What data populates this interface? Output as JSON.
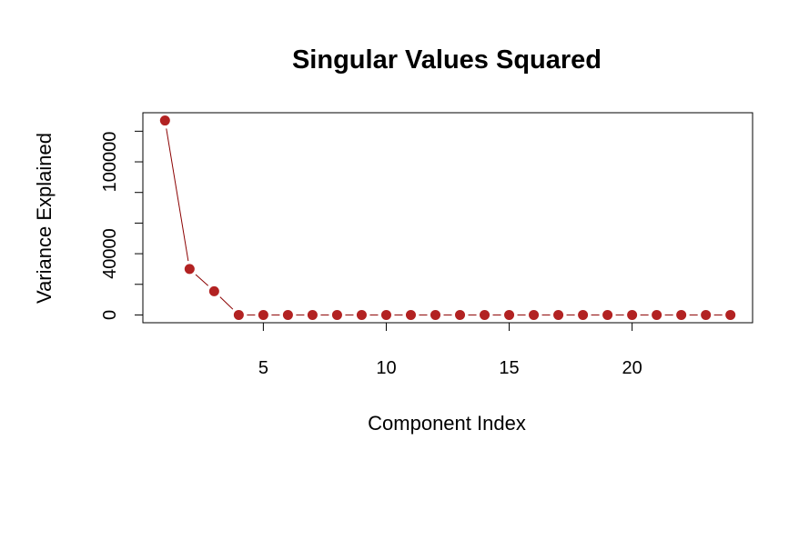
{
  "chart_data": {
    "type": "line",
    "title": "Singular Values Squared",
    "xlabel": "Component Index",
    "ylabel": "Variance Explained",
    "x": [
      1,
      2,
      3,
      4,
      5,
      6,
      7,
      8,
      9,
      10,
      11,
      12,
      13,
      14,
      15,
      16,
      17,
      18,
      19,
      20,
      21,
      22,
      23,
      24
    ],
    "series": [
      {
        "values": [
          127000,
          30000,
          15500,
          0,
          0,
          0,
          0,
          0,
          0,
          0,
          0,
          0,
          0,
          0,
          0,
          0,
          0,
          0,
          0,
          0,
          0,
          0,
          0,
          0
        ]
      }
    ],
    "xticks": [
      5,
      10,
      15,
      20
    ],
    "yticks": [
      0,
      40000,
      100000
    ],
    "yticks_minor": [
      20000,
      60000,
      80000,
      120000
    ],
    "xlim": [
      0.1,
      24.9
    ],
    "ylim": [
      -5080,
      132080
    ],
    "grid": false,
    "legend": "none",
    "colors": {
      "points": "#b22222",
      "line": "#8b0000"
    }
  }
}
